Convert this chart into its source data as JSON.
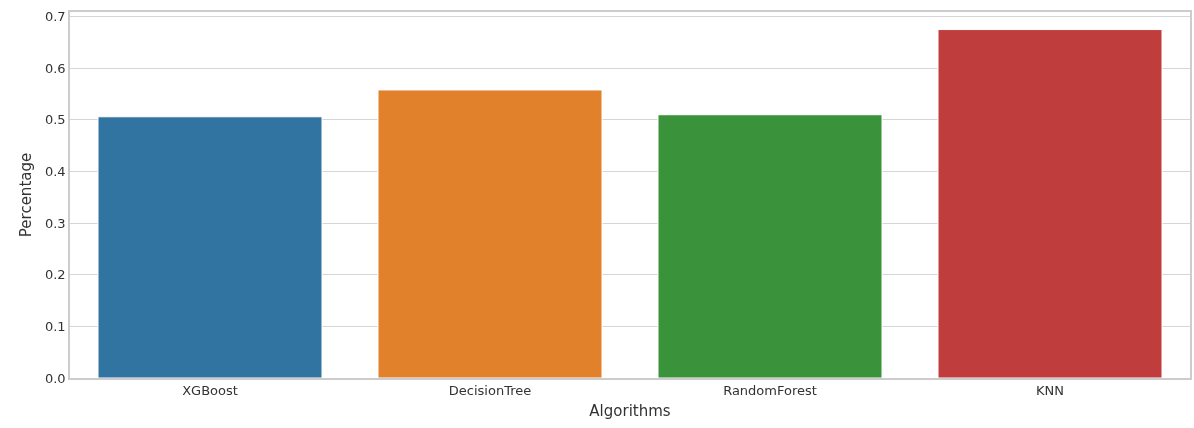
{
  "chart_data": {
    "type": "bar",
    "xlabel": "Algorithms",
    "ylabel": "Percentage",
    "categories": [
      "XGBoost",
      "DecisionTree",
      "RandomForest",
      "KNN"
    ],
    "values": [
      0.506,
      0.558,
      0.51,
      0.675
    ],
    "colors": [
      "#3274a1",
      "#e1812c",
      "#3a923a",
      "#c03d3e"
    ],
    "ylim": [
      0,
      0.709
    ],
    "yticks": [
      {
        "value": 0,
        "label": "0.0"
      },
      0.1,
      0.2,
      0.3,
      0.4,
      0.5,
      0.6,
      0.7
    ],
    "grid": "y"
  }
}
